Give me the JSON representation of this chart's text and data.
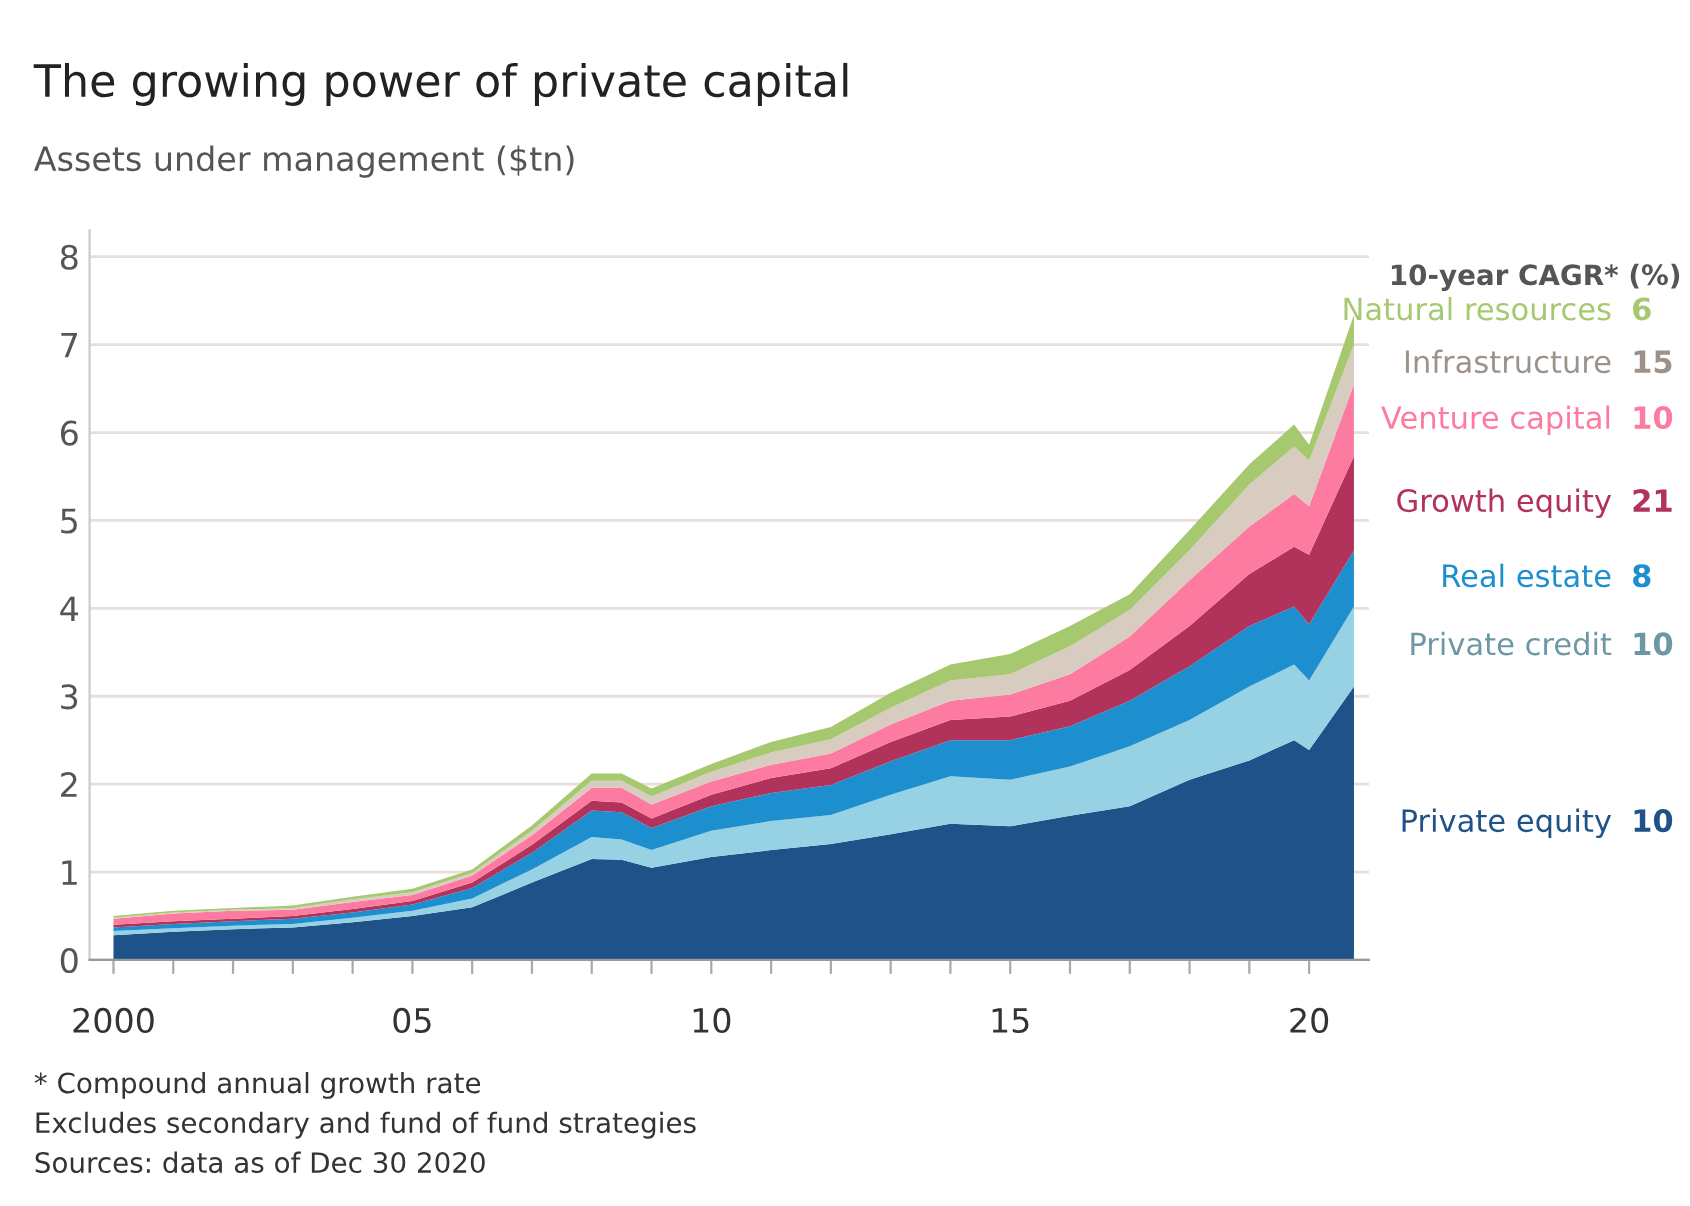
{
  "chart_data": {
    "type": "area",
    "stacked": true,
    "title": "The growing power of private capital",
    "subtitle": "Assets under management ($tn)",
    "x": [
      2000,
      2001,
      2002,
      2003,
      2004,
      2005,
      2006,
      2007,
      2008,
      2008.5,
      2009,
      2010,
      2011,
      2012,
      2013,
      2014,
      2015,
      2016,
      2017,
      2018,
      2019,
      2019.75,
      2020,
      2020.75
    ],
    "series": [
      {
        "name": "Private equity",
        "color": "#1f5288",
        "values": [
          0.28,
          0.32,
          0.35,
          0.37,
          0.43,
          0.5,
          0.6,
          0.88,
          1.15,
          1.14,
          1.05,
          1.17,
          1.25,
          1.32,
          1.43,
          1.55,
          1.52,
          1.64,
          1.75,
          2.05,
          2.27,
          2.5,
          2.39,
          3.11
        ]
      },
      {
        "name": "Private credit",
        "color": "#96d2e4",
        "values": [
          0.05,
          0.04,
          0.04,
          0.04,
          0.05,
          0.06,
          0.1,
          0.15,
          0.25,
          0.23,
          0.2,
          0.3,
          0.33,
          0.33,
          0.45,
          0.54,
          0.53,
          0.56,
          0.68,
          0.68,
          0.84,
          0.86,
          0.79,
          0.91
        ]
      },
      {
        "name": "Real estate",
        "color": "#1e8fce",
        "values": [
          0.04,
          0.05,
          0.05,
          0.06,
          0.06,
          0.07,
          0.12,
          0.19,
          0.3,
          0.31,
          0.25,
          0.28,
          0.32,
          0.34,
          0.38,
          0.41,
          0.45,
          0.46,
          0.52,
          0.61,
          0.69,
          0.66,
          0.64,
          0.64
        ]
      },
      {
        "name": "Growth equity",
        "color": "#b1325a",
        "values": [
          0.03,
          0.03,
          0.03,
          0.03,
          0.04,
          0.04,
          0.06,
          0.09,
          0.11,
          0.11,
          0.11,
          0.13,
          0.17,
          0.19,
          0.22,
          0.23,
          0.27,
          0.29,
          0.35,
          0.46,
          0.59,
          0.68,
          0.79,
          1.07
        ]
      },
      {
        "name": "Venture capital",
        "color": "#fd7ba0",
        "values": [
          0.07,
          0.09,
          0.09,
          0.07,
          0.08,
          0.07,
          0.08,
          0.11,
          0.15,
          0.17,
          0.16,
          0.15,
          0.15,
          0.17,
          0.2,
          0.22,
          0.25,
          0.3,
          0.38,
          0.52,
          0.54,
          0.6,
          0.55,
          0.82
        ]
      },
      {
        "name": "Infrastructure",
        "color": "#d8cbc0",
        "values": [
          0.01,
          0.01,
          0.01,
          0.02,
          0.03,
          0.03,
          0.03,
          0.05,
          0.08,
          0.08,
          0.09,
          0.11,
          0.14,
          0.16,
          0.19,
          0.23,
          0.23,
          0.32,
          0.3,
          0.34,
          0.48,
          0.54,
          0.52,
          0.45
        ]
      },
      {
        "name": "Natural resources",
        "color": "#a6c96f",
        "values": [
          0.02,
          0.02,
          0.02,
          0.03,
          0.03,
          0.04,
          0.04,
          0.06,
          0.08,
          0.08,
          0.09,
          0.09,
          0.12,
          0.14,
          0.17,
          0.18,
          0.23,
          0.23,
          0.18,
          0.23,
          0.23,
          0.25,
          0.18,
          0.34
        ]
      }
    ],
    "xlim": [
      1999.6,
      2021.0
    ],
    "xticks": [
      {
        "value": 2000,
        "label": "2000"
      },
      {
        "value": 2001,
        "label": null
      },
      {
        "value": 2002,
        "label": null
      },
      {
        "value": 2003,
        "label": null
      },
      {
        "value": 2004,
        "label": null
      },
      {
        "value": 2005,
        "label": "05"
      },
      {
        "value": 2006,
        "label": null
      },
      {
        "value": 2007,
        "label": null
      },
      {
        "value": 2008,
        "label": null
      },
      {
        "value": 2009,
        "label": null
      },
      {
        "value": 2010,
        "label": "10"
      },
      {
        "value": 2011,
        "label": null
      },
      {
        "value": 2012,
        "label": null
      },
      {
        "value": 2013,
        "label": null
      },
      {
        "value": 2014,
        "label": null
      },
      {
        "value": 2015,
        "label": "15"
      },
      {
        "value": 2016,
        "label": null
      },
      {
        "value": 2017,
        "label": null
      },
      {
        "value": 2018,
        "label": null
      },
      {
        "value": 2019,
        "label": null
      },
      {
        "value": 2020,
        "label": "20"
      }
    ],
    "ylim": [
      0,
      8.3
    ],
    "yticks": [
      0,
      1,
      2,
      3,
      4,
      5,
      6,
      7,
      8
    ],
    "grid": "y",
    "annotations": [
      "10-year CAGR* (%)",
      "10",
      "10",
      "8",
      "21",
      "10",
      "15",
      "6",
      "* Compound annual growth rate",
      "Excludes secondary and fund of fund strategies",
      "Sources: data as of Dec 30 2020"
    ]
  }
}
